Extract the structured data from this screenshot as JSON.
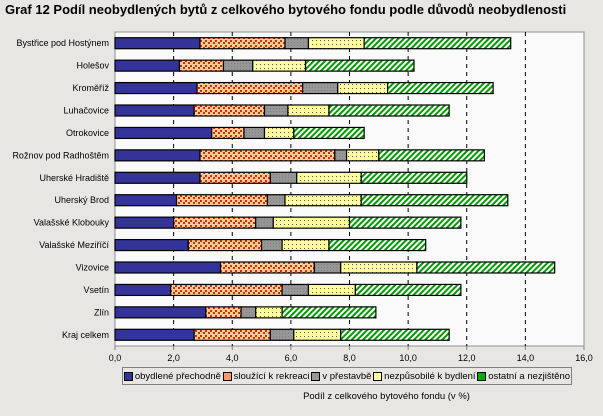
{
  "chart_data": {
    "type": "bar",
    "orientation": "horizontal",
    "stacked": true,
    "title": "Graf  12 Podíl neobydlených bytů z celkového bytového fondu podle důvodů neobydlenosti",
    "xlabel": "Podíl z celkového bytového fondu (v %)",
    "ylabel": "",
    "xlim": [
      0,
      16
    ],
    "xticks": [
      "0,0",
      "2,0",
      "4,0",
      "6,0",
      "8,0",
      "10,0",
      "12,0",
      "14,0",
      "16,0"
    ],
    "grid": "vertical dashed",
    "legend": "bottom",
    "categories": [
      "Bystřice pod Hostýnem",
      "Holešov",
      "Kroměříž",
      "Luhačovice",
      "Otrokovice",
      "Rožnov pod Radhoštěm",
      "Uherské Hradiště",
      "Uherský Brod",
      "Valašské Klobouky",
      "Valašské Meziříčí",
      "Vizovice",
      "Vsetín",
      "Zlín",
      "Kraj celkem"
    ],
    "series": [
      {
        "name": "obydlené přechodně",
        "color": "#333399",
        "values": [
          2.9,
          2.2,
          2.8,
          2.7,
          3.3,
          2.9,
          2.9,
          2.1,
          2.0,
          2.5,
          3.6,
          1.9,
          3.1,
          2.7
        ]
      },
      {
        "name": "sloužící k rekreaci",
        "color": "#ff9966",
        "values": [
          2.9,
          1.5,
          3.6,
          2.4,
          1.1,
          4.6,
          2.4,
          3.1,
          2.8,
          2.5,
          3.2,
          3.8,
          1.2,
          2.6
        ]
      },
      {
        "name": "v přestavbě",
        "color": "#969696",
        "values": [
          0.8,
          1.0,
          1.2,
          0.8,
          0.7,
          0.4,
          0.9,
          0.6,
          0.6,
          0.7,
          0.9,
          0.9,
          0.5,
          0.8
        ]
      },
      {
        "name": "nezpůsobilé k bydlení",
        "color": "#ffff99",
        "values": [
          1.9,
          1.8,
          1.7,
          1.4,
          1.0,
          1.1,
          2.2,
          2.6,
          2.6,
          1.6,
          2.6,
          1.6,
          0.9,
          1.6
        ]
      },
      {
        "name": "ostatní a nezjištěno",
        "color": "#00aa00",
        "values": [
          5.0,
          3.7,
          3.6,
          4.1,
          2.4,
          3.6,
          3.6,
          5.0,
          3.8,
          3.3,
          4.7,
          3.6,
          3.2,
          3.7
        ]
      }
    ]
  }
}
